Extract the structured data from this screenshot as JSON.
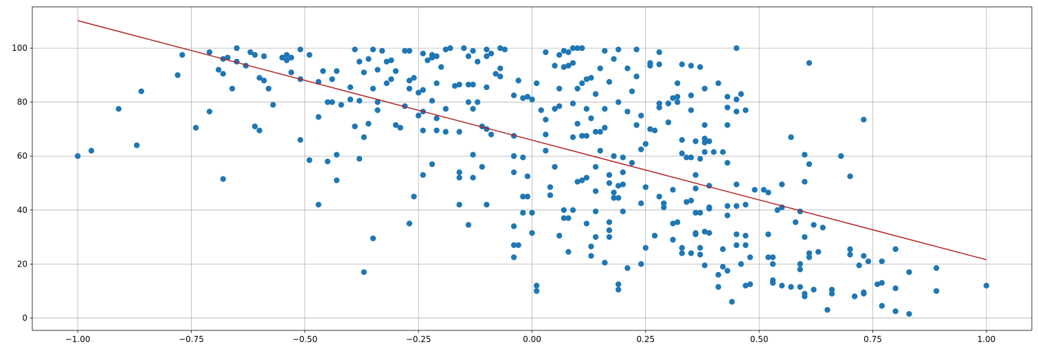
{
  "chart_data": {
    "type": "scatter",
    "grid": true,
    "xlim": [
      -1.1,
      1.1
    ],
    "ylim": [
      -4.6,
      115.3
    ],
    "xticks": [
      {
        "value": -1,
        "label": "−1.00"
      },
      {
        "value": -0.75,
        "label": "−0.75"
      },
      {
        "value": -0.5,
        "label": "−0.50"
      },
      {
        "value": -0.25,
        "label": "−0.25"
      },
      {
        "value": 0,
        "label": "0.00"
      },
      {
        "value": 0.25,
        "label": "0.25"
      },
      {
        "value": 0.5,
        "label": "0.50"
      },
      {
        "value": 0.75,
        "label": "0.75"
      },
      {
        "value": 1,
        "label": "1.00"
      }
    ],
    "yticks": [
      0,
      20,
      40,
      60,
      80,
      100
    ],
    "series": [
      {
        "type": "scatter",
        "color": "#1f77b4",
        "x": [
          -1.0,
          -0.97,
          -0.91,
          -0.87,
          -0.86,
          -0.78,
          -0.77,
          -0.74,
          -0.71,
          -0.71,
          -0.69,
          -0.68,
          -0.68,
          -0.68,
          -0.67,
          -0.66,
          -0.65,
          -0.65,
          -0.63,
          -0.62,
          -0.61,
          -0.61,
          -0.6,
          -0.6,
          -0.59,
          -0.59,
          -0.58,
          -0.57,
          -0.55,
          -0.54,
          -0.54,
          -0.53,
          -0.53,
          -0.51,
          -0.51,
          -0.51,
          -0.49,
          -0.49,
          -0.47,
          -0.47,
          -0.47,
          -0.46,
          -0.45,
          -0.45,
          -0.44,
          -0.44,
          -0.43,
          -0.43,
          -0.43,
          -0.42,
          -0.4,
          -0.4,
          -0.39,
          -0.39,
          -0.38,
          -0.38,
          -0.38,
          -0.37,
          -0.37,
          -0.37,
          -0.36,
          -0.36,
          -0.35,
          -0.35,
          -0.35,
          -0.34,
          -0.34,
          -0.34,
          -0.33,
          -0.32,
          -0.32,
          -0.31,
          -0.31,
          -0.3,
          -0.3,
          -0.29,
          -0.28,
          -0.28,
          -0.27,
          -0.27,
          -0.27,
          -0.27,
          -0.26,
          -0.26,
          -0.25,
          -0.25,
          -0.24,
          -0.24,
          -0.24,
          -0.24,
          -0.24,
          -0.23,
          -0.22,
          -0.22,
          -0.22,
          -0.22,
          -0.21,
          -0.21,
          -0.21,
          -0.21,
          -0.2,
          -0.19,
          -0.19,
          -0.19,
          -0.18,
          -0.17,
          -0.16,
          -0.16,
          -0.16,
          -0.16,
          -0.16,
          -0.15,
          -0.14,
          -0.14,
          -0.14,
          -0.14,
          -0.13,
          -0.13,
          -0.13,
          -0.13,
          -0.13,
          -0.12,
          -0.12,
          -0.11,
          -0.11,
          -0.1,
          -0.1,
          -0.1,
          -0.1,
          -0.1,
          -0.09,
          -0.09,
          -0.08,
          -0.07,
          -0.07,
          -0.07,
          -0.06,
          -0.04,
          -0.04,
          -0.04,
          -0.04,
          -0.04,
          -0.04,
          -0.04,
          -0.03,
          -0.03,
          -0.02,
          -0.02,
          -0.02,
          -0.02,
          -0.01,
          -0.01,
          -0.01,
          0.0,
          0.0,
          0.0,
          0.01,
          0.01,
          0.01,
          0.02,
          0.03,
          0.03,
          0.03,
          0.03,
          0.04,
          0.04,
          0.05,
          0.05,
          0.05,
          0.06,
          0.06,
          0.06,
          0.06,
          0.07,
          0.07,
          0.07,
          0.07,
          0.08,
          0.08,
          0.08,
          0.08,
          0.09,
          0.09,
          0.09,
          0.09,
          0.09,
          0.1,
          0.1,
          0.1,
          0.1,
          0.11,
          0.11,
          0.11,
          0.11,
          0.12,
          0.12,
          0.12,
          0.12,
          0.12,
          0.13,
          0.13,
          0.13,
          0.13,
          0.14,
          0.14,
          0.14,
          0.14,
          0.14,
          0.14,
          0.15,
          0.15,
          0.15,
          0.16,
          0.16,
          0.16,
          0.16,
          0.17,
          0.17,
          0.17,
          0.17,
          0.17,
          0.17,
          0.18,
          0.18,
          0.18,
          0.18,
          0.19,
          0.19,
          0.19,
          0.19,
          0.19,
          0.19,
          0.2,
          0.2,
          0.2,
          0.2,
          0.21,
          0.21,
          0.21,
          0.22,
          0.22,
          0.23,
          0.23,
          0.23,
          0.24,
          0.24,
          0.24,
          0.24,
          0.25,
          0.25,
          0.25,
          0.26,
          0.26,
          0.26,
          0.27,
          0.27,
          0.28,
          0.28,
          0.28,
          0.28,
          0.28,
          0.29,
          0.29,
          0.3,
          0.3,
          0.31,
          0.31,
          0.31,
          0.31,
          0.32,
          0.32,
          0.32,
          0.32,
          0.33,
          0.33,
          0.33,
          0.33,
          0.33,
          0.34,
          0.34,
          0.35,
          0.35,
          0.35,
          0.35,
          0.35,
          0.35,
          0.36,
          0.36,
          0.36,
          0.36,
          0.36,
          0.36,
          0.37,
          0.37,
          0.37,
          0.37,
          0.37,
          0.38,
          0.38,
          0.38,
          0.38,
          0.38,
          0.38,
          0.38,
          0.39,
          0.39,
          0.39,
          0.39,
          0.39,
          0.4,
          0.41,
          0.41,
          0.41,
          0.42,
          0.42,
          0.42,
          0.43,
          0.43,
          0.43,
          0.43,
          0.43,
          0.43,
          0.43,
          0.44,
          0.45,
          0.45,
          0.45,
          0.45,
          0.45,
          0.45,
          0.45,
          0.46,
          0.46,
          0.47,
          0.47,
          0.47,
          0.47,
          0.47,
          0.48,
          0.48,
          0.49,
          0.51,
          0.52,
          0.52,
          0.52,
          0.53,
          0.53,
          0.53,
          0.53,
          0.54,
          0.55,
          0.55,
          0.55,
          0.57,
          0.57,
          0.58,
          0.59,
          0.59,
          0.59,
          0.59,
          0.6,
          0.6,
          0.6,
          0.6,
          0.6,
          0.61,
          0.61,
          0.61,
          0.61,
          0.62,
          0.62,
          0.63,
          0.64,
          0.65,
          0.66,
          0.66,
          0.68,
          0.7,
          0.7,
          0.7,
          0.71,
          0.72,
          0.73,
          0.73,
          0.73,
          0.73,
          0.74,
          0.76,
          0.77,
          0.77,
          0.77,
          0.8,
          0.8,
          0.8,
          0.83,
          0.83,
          0.89,
          0.89,
          1.0
        ],
        "values": [
          60,
          62,
          77.5,
          64,
          84,
          90,
          97.5,
          70.5,
          76.5,
          98.5,
          92,
          90.5,
          96,
          51.5,
          96.5,
          85,
          100,
          95,
          93.5,
          98.5,
          97.5,
          71,
          69.5,
          89,
          88,
          97,
          85,
          79,
          96.5,
          97.5,
          95.5,
          96.5,
          91,
          99.5,
          88.5,
          66,
          58.5,
          97.5,
          42,
          87.5,
          74.5,
          91.5,
          80,
          58,
          88.5,
          80,
          91.5,
          60.5,
          51,
          79,
          85.5,
          81,
          99.5,
          71,
          95,
          80.5,
          59,
          91,
          67,
          17,
          72,
          96,
          99.5,
          85,
          29.5,
          92,
          80,
          77,
          99,
          95,
          87,
          95.5,
          88.5,
          91.5,
          71.5,
          70.5,
          99,
          78.5,
          99,
          88,
          85,
          35,
          89,
          45,
          83.5,
          75,
          98,
          84.5,
          76.5,
          69.5,
          53,
          95.5,
          97.5,
          96.5,
          80.5,
          57,
          97,
          87,
          74,
          69.5,
          93,
          99.5,
          77.5,
          69,
          100,
          86,
          86.5,
          69,
          54,
          52,
          42,
          100,
          97,
          86.5,
          80,
          34.5,
          99,
          86.5,
          77.5,
          60.5,
          52,
          95,
          80,
          71,
          56,
          99.5,
          97,
          85.5,
          70,
          42,
          98,
          68,
          90.5,
          89.5,
          92.5,
          100,
          99.5,
          82.5,
          67.5,
          60,
          54,
          34,
          27,
          22.5,
          27,
          88,
          81.5,
          59.5,
          45,
          39,
          82,
          52.5,
          45,
          81,
          31.5,
          39,
          87,
          12,
          10,
          77,
          98.5,
          73.5,
          68,
          62,
          48.5,
          45.5,
          77.5,
          93.5,
          56,
          97.5,
          85,
          78.5,
          30.5,
          99,
          93,
          37,
          40,
          98.5,
          93.5,
          37,
          24.5,
          100,
          94.5,
          79.5,
          67,
          40,
          100,
          85,
          72,
          50.5,
          100,
          87,
          67.5,
          51,
          88.5,
          77.5,
          67.5,
          52,
          35,
          89,
          74,
          26.5,
          23,
          83,
          69,
          56,
          47,
          39.5,
          30,
          92.5,
          69,
          62,
          99,
          77.5,
          70.5,
          20.5,
          87.5,
          53,
          50,
          35.5,
          32.5,
          30,
          96,
          60,
          46.5,
          44.5,
          99.5,
          80,
          49,
          44.5,
          12.5,
          10.5,
          59.5,
          54,
          49.5,
          39.5,
          92.5,
          76.5,
          18.5,
          84,
          57.5,
          99.5,
          89.5,
          71.5,
          75,
          62.5,
          42.5,
          20,
          64.5,
          48.5,
          26,
          94.5,
          93.5,
          70,
          69.5,
          30.5,
          98.5,
          94,
          79.5,
          78,
          45,
          42.5,
          41,
          72.5,
          79.5,
          81.5,
          47.5,
          35,
          29,
          82,
          87,
          80,
          35.5,
          94,
          66,
          61,
          26,
          24,
          59.5,
          43,
          93.5,
          82.5,
          77,
          59.5,
          43.5,
          24,
          65.5,
          53,
          48,
          39,
          31.5,
          31,
          93,
          59,
          39,
          26,
          23.5,
          85,
          71.5,
          66.5,
          65,
          61.5,
          32,
          19.5,
          65.5,
          49,
          41,
          40.5,
          31.5,
          61.5,
          87,
          16,
          11.5,
          61.5,
          25.5,
          19,
          82,
          78,
          71.5,
          57.5,
          41.5,
          38,
          17.5,
          6,
          100,
          81,
          76.5,
          49.5,
          41.5,
          31,
          27,
          83,
          20,
          77,
          42,
          30.5,
          27,
          12,
          12.5,
          22.5,
          47.5,
          47.5,
          46.5,
          31,
          22.5,
          22.5,
          20,
          14,
          13,
          40,
          49.5,
          41,
          12,
          67,
          11.5,
          35.5,
          39.5,
          20,
          18,
          11.5,
          60.5,
          50.5,
          30,
          9,
          8,
          94.5,
          57,
          24,
          22.5,
          34.5,
          10.5,
          24.5,
          33.5,
          3,
          10.5,
          9,
          60,
          52.5,
          25.5,
          23.5,
          8,
          19.5,
          73.5,
          23,
          9.5,
          9,
          21,
          12.5,
          13,
          21,
          4.5,
          25.5,
          11,
          2.5,
          17,
          1.5,
          18.5,
          10,
          12
        ]
      },
      {
        "type": "line",
        "color": "#b22222",
        "x": [
          -1,
          1
        ],
        "values": [
          110.2,
          21.6
        ]
      }
    ]
  }
}
